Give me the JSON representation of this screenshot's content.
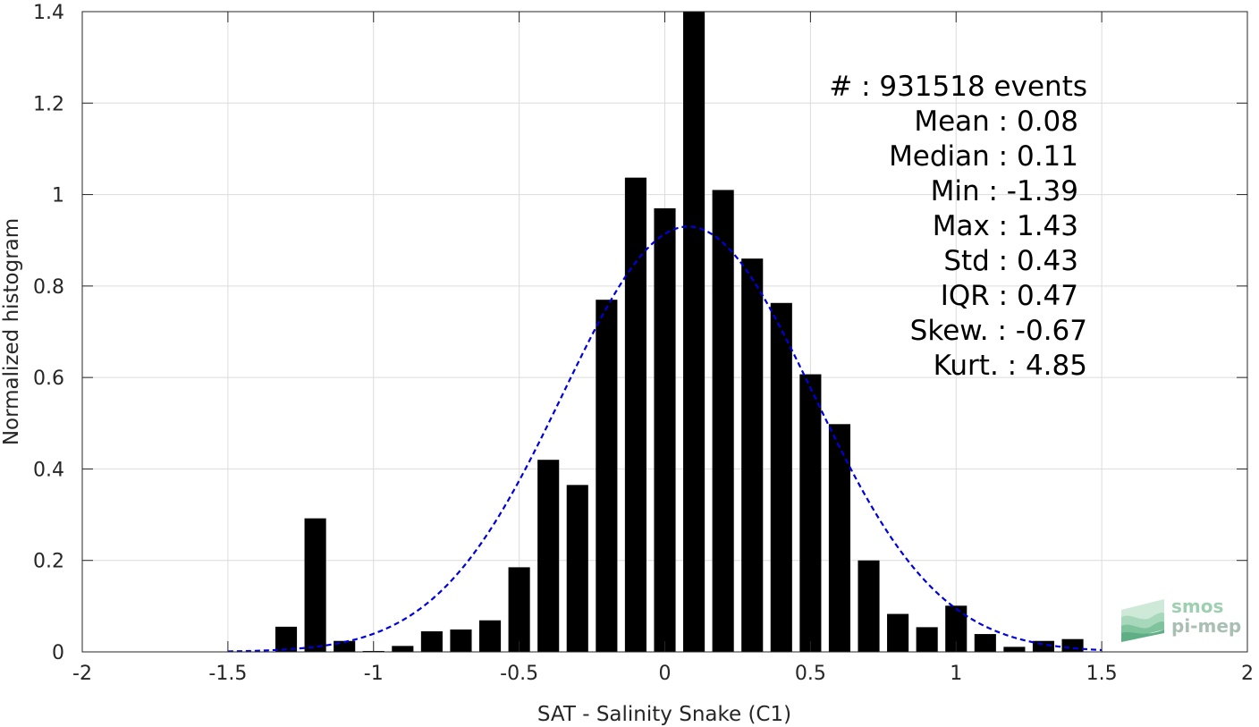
{
  "chart_data": {
    "type": "bar",
    "xlabel": "SAT - Salinity Snake (C1)",
    "ylabel": "Normalized histogram",
    "xlim": [
      -2,
      2
    ],
    "ylim": [
      0,
      1.4
    ],
    "xticks": [
      "-2",
      "-1.5",
      "-1",
      "-0.5",
      "0",
      "0.5",
      "1",
      "1.5",
      "2"
    ],
    "yticks": [
      "0",
      "0.2",
      "0.4",
      "0.6",
      "0.8",
      "1",
      "1.2",
      "1.4"
    ],
    "grid": true,
    "bar_color": "#000000",
    "fit_color": "#0000dd",
    "bars": [
      {
        "x": -1.3,
        "y": 0.055
      },
      {
        "x": -1.2,
        "y": 0.292
      },
      {
        "x": -1.1,
        "y": 0.024
      },
      {
        "x": -1.0,
        "y": 0.002
      },
      {
        "x": -0.9,
        "y": 0.013
      },
      {
        "x": -0.8,
        "y": 0.045
      },
      {
        "x": -0.7,
        "y": 0.049
      },
      {
        "x": -0.6,
        "y": 0.069
      },
      {
        "x": -0.5,
        "y": 0.185
      },
      {
        "x": -0.4,
        "y": 0.42
      },
      {
        "x": -0.3,
        "y": 0.365
      },
      {
        "x": -0.2,
        "y": 0.77
      },
      {
        "x": -0.1,
        "y": 1.037
      },
      {
        "x": 0.0,
        "y": 0.97
      },
      {
        "x": 0.1,
        "y": 1.4
      },
      {
        "x": 0.2,
        "y": 1.01
      },
      {
        "x": 0.3,
        "y": 0.86
      },
      {
        "x": 0.4,
        "y": 0.763
      },
      {
        "x": 0.5,
        "y": 0.607
      },
      {
        "x": 0.6,
        "y": 0.498
      },
      {
        "x": 0.7,
        "y": 0.2
      },
      {
        "x": 0.8,
        "y": 0.083
      },
      {
        "x": 0.9,
        "y": 0.054
      },
      {
        "x": 1.0,
        "y": 0.101
      },
      {
        "x": 1.1,
        "y": 0.039
      },
      {
        "x": 1.2,
        "y": 0.011
      },
      {
        "x": 1.3,
        "y": 0.024
      },
      {
        "x": 1.4,
        "y": 0.028
      }
    ],
    "fit": {
      "type": "gaussian",
      "mean": 0.08,
      "std": 0.43,
      "peak": 0.93,
      "range": [
        -1.5,
        1.5
      ]
    }
  },
  "stats": {
    "count": "#  : 931518 events",
    "mean": "Mean : 0.08",
    "median": "Median : 0.11",
    "min": "Min : -1.39",
    "max": "Max : 1.43",
    "std": "Std : 0.43",
    "iqr": "IQR : 0.47",
    "skew": "Skew. : -0.67",
    "kurt": "Kurt. : 4.85"
  },
  "logo": {
    "line1": "smos",
    "line2": "pi-mep"
  }
}
